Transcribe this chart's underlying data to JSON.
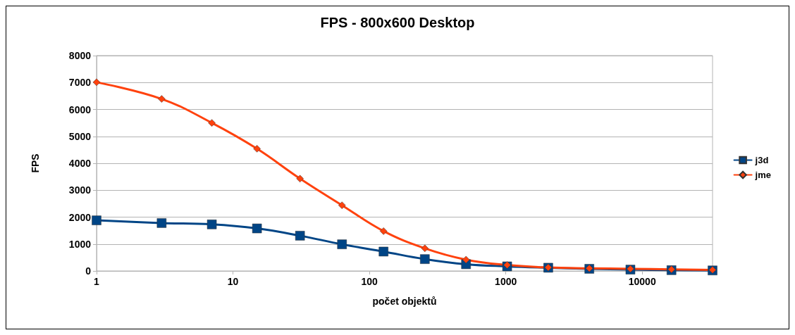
{
  "chart_data": {
    "type": "line",
    "title": "FPS - 800x600 Desktop",
    "xlabel": "počet objektů",
    "ylabel": "FPS",
    "x": [
      1,
      3,
      7,
      15,
      31,
      63,
      127,
      255,
      511,
      1023,
      2047,
      4095,
      8191,
      16383,
      32767
    ],
    "series": [
      {
        "name": "j3d",
        "color": "#004586",
        "marker": "square",
        "values": [
          1880,
          1780,
          1730,
          1580,
          1310,
          990,
          720,
          440,
          250,
          170,
          120,
          80,
          50,
          30,
          20
        ]
      },
      {
        "name": "jme",
        "color": "#ff420e",
        "marker": "diamond",
        "values": [
          7010,
          6390,
          5500,
          4540,
          3430,
          2440,
          1480,
          840,
          420,
          220,
          130,
          100,
          80,
          60,
          40
        ]
      }
    ],
    "log": "x",
    "xlim": [
      1,
      32767
    ],
    "xticks": [
      1,
      10,
      100,
      1000,
      10000
    ],
    "ylim": [
      0,
      8000
    ],
    "yticks": [
      0,
      1000,
      2000,
      3000,
      4000,
      5000,
      6000,
      7000,
      8000
    ],
    "grid": "y",
    "legend": "right",
    "line_style": "solid"
  }
}
